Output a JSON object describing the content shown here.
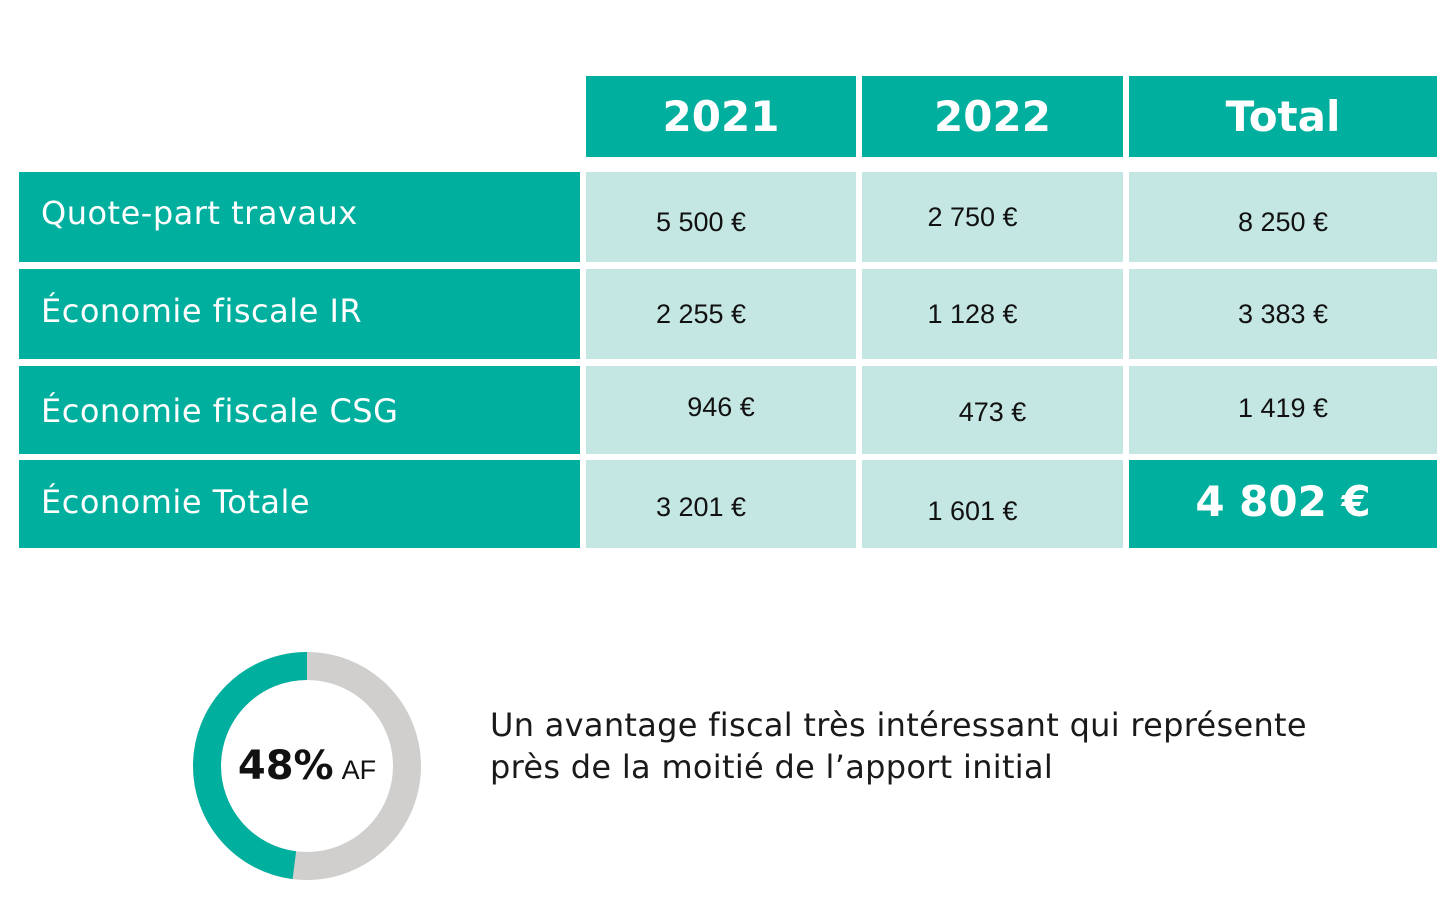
{
  "chart_data": {
    "type": "table",
    "columns": [
      "2021",
      "2022",
      "Total"
    ],
    "rows": [
      {
        "label": "Quote-part travaux",
        "values": [
          "5 500 €",
          "2 750 €",
          "8 250 €"
        ]
      },
      {
        "label": "Économie fiscale IR",
        "values": [
          "2 255 €",
          "1 128 €",
          "3 383 €"
        ]
      },
      {
        "label": "Économie fiscale CSG",
        "values": [
          "946 €",
          "473 €",
          "1 419 €"
        ]
      },
      {
        "label": "Économie Totale",
        "values": [
          "3 201 €",
          "1 601 €",
          "4 802 €"
        ]
      }
    ]
  },
  "donut": {
    "value_label": "48%",
    "unit_label": "AF",
    "fraction": 0.48,
    "color_filled": "#00af9d",
    "color_rest": "#d0cfcd"
  },
  "caption": {
    "line1": "Un avantage fiscal très intéressant qui représente",
    "line2": "près de la moitié de l’apport initial"
  },
  "colors": {
    "teal": "#00af9d",
    "light_teal": "#c5e7e3"
  }
}
